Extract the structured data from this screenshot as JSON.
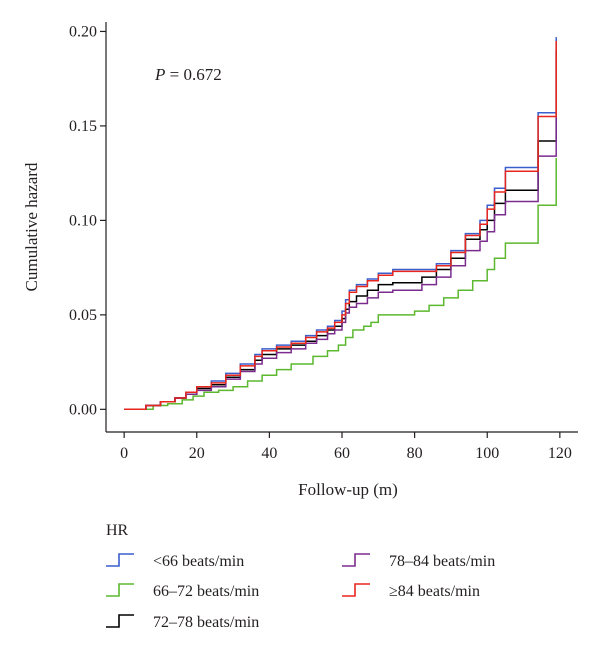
{
  "chart_data": {
    "type": "line",
    "step": true,
    "xlabel": "Follow-up (m)",
    "ylabel": "Cumulative hazard",
    "xlim": [
      -5,
      125
    ],
    "ylim": [
      -0.012,
      0.205
    ],
    "xticks": [
      0,
      20,
      40,
      60,
      80,
      100,
      120
    ],
    "yticks": [
      0.0,
      0.05,
      0.1,
      0.15,
      0.2
    ],
    "xtick_labels": [
      "0",
      "20",
      "40",
      "60",
      "80",
      "100",
      "120"
    ],
    "ytick_labels": [
      "0.00",
      "0.05",
      "0.10",
      "0.15",
      "0.20"
    ],
    "annotation": {
      "italic": "P",
      "rest": " = 0.672"
    },
    "legend_title": "HR",
    "grid": false,
    "series": [
      {
        "name": "<66 beats/min",
        "color": "#3a5fcd",
        "points": [
          [
            0,
            0
          ],
          [
            6,
            0.002
          ],
          [
            10,
            0.004
          ],
          [
            14,
            0.006
          ],
          [
            17,
            0.009
          ],
          [
            20,
            0.012
          ],
          [
            24,
            0.015
          ],
          [
            28,
            0.019
          ],
          [
            32,
            0.024
          ],
          [
            36,
            0.029
          ],
          [
            38,
            0.032
          ],
          [
            42,
            0.034
          ],
          [
            46,
            0.036
          ],
          [
            50,
            0.039
          ],
          [
            53,
            0.042
          ],
          [
            56,
            0.044
          ],
          [
            58,
            0.047
          ],
          [
            60,
            0.052
          ],
          [
            61,
            0.058
          ],
          [
            62,
            0.063
          ],
          [
            64,
            0.066
          ],
          [
            67,
            0.069
          ],
          [
            70,
            0.072
          ],
          [
            74,
            0.074
          ],
          [
            86,
            0.077
          ],
          [
            90,
            0.084
          ],
          [
            94,
            0.093
          ],
          [
            98,
            0.1
          ],
          [
            100,
            0.108
          ],
          [
            102,
            0.117
          ],
          [
            105,
            0.128
          ],
          [
            114,
            0.157
          ],
          [
            119,
            0.197
          ]
        ]
      },
      {
        "name": "66–72 beats/min",
        "color": "#5cb82e",
        "points": [
          [
            0,
            0
          ],
          [
            8,
            0.002
          ],
          [
            12,
            0.003
          ],
          [
            16,
            0.005
          ],
          [
            19,
            0.007
          ],
          [
            22,
            0.009
          ],
          [
            26,
            0.01
          ],
          [
            30,
            0.012
          ],
          [
            34,
            0.015
          ],
          [
            38,
            0.018
          ],
          [
            42,
            0.021
          ],
          [
            46,
            0.024
          ],
          [
            52,
            0.028
          ],
          [
            56,
            0.031
          ],
          [
            59,
            0.034
          ],
          [
            61,
            0.038
          ],
          [
            63,
            0.042
          ],
          [
            66,
            0.044
          ],
          [
            68,
            0.046
          ],
          [
            70,
            0.05
          ],
          [
            80,
            0.052
          ],
          [
            84,
            0.055
          ],
          [
            88,
            0.059
          ],
          [
            92,
            0.063
          ],
          [
            96,
            0.068
          ],
          [
            100,
            0.074
          ],
          [
            102,
            0.08
          ],
          [
            105,
            0.088
          ],
          [
            114,
            0.108
          ],
          [
            119,
            0.133
          ]
        ]
      },
      {
        "name": "72–78 beats/min",
        "color": "#000000",
        "points": [
          [
            0,
            0
          ],
          [
            6,
            0.002
          ],
          [
            10,
            0.004
          ],
          [
            14,
            0.006
          ],
          [
            17,
            0.008
          ],
          [
            20,
            0.011
          ],
          [
            24,
            0.013
          ],
          [
            28,
            0.017
          ],
          [
            32,
            0.021
          ],
          [
            36,
            0.026
          ],
          [
            38,
            0.029
          ],
          [
            42,
            0.032
          ],
          [
            46,
            0.034
          ],
          [
            50,
            0.036
          ],
          [
            53,
            0.039
          ],
          [
            56,
            0.042
          ],
          [
            58,
            0.044
          ],
          [
            60,
            0.048
          ],
          [
            61,
            0.053
          ],
          [
            62,
            0.057
          ],
          [
            64,
            0.06
          ],
          [
            67,
            0.063
          ],
          [
            70,
            0.066
          ],
          [
            74,
            0.067
          ],
          [
            82,
            0.07
          ],
          [
            86,
            0.074
          ],
          [
            90,
            0.08
          ],
          [
            94,
            0.09
          ],
          [
            98,
            0.095
          ],
          [
            100,
            0.1
          ],
          [
            102,
            0.109
          ],
          [
            105,
            0.116
          ],
          [
            114,
            0.142
          ],
          [
            119,
            0.19
          ]
        ]
      },
      {
        "name": "78–84 beats/min",
        "color": "#7b2d8e",
        "points": [
          [
            0,
            0
          ],
          [
            6,
            0.002
          ],
          [
            10,
            0.004
          ],
          [
            14,
            0.006
          ],
          [
            17,
            0.008
          ],
          [
            20,
            0.01
          ],
          [
            24,
            0.012
          ],
          [
            28,
            0.016
          ],
          [
            32,
            0.02
          ],
          [
            36,
            0.024
          ],
          [
            38,
            0.027
          ],
          [
            42,
            0.03
          ],
          [
            46,
            0.032
          ],
          [
            50,
            0.035
          ],
          [
            53,
            0.037
          ],
          [
            56,
            0.04
          ],
          [
            58,
            0.042
          ],
          [
            60,
            0.046
          ],
          [
            61,
            0.051
          ],
          [
            62,
            0.054
          ],
          [
            64,
            0.056
          ],
          [
            67,
            0.059
          ],
          [
            70,
            0.062
          ],
          [
            74,
            0.063
          ],
          [
            82,
            0.066
          ],
          [
            86,
            0.07
          ],
          [
            90,
            0.076
          ],
          [
            94,
            0.084
          ],
          [
            98,
            0.089
          ],
          [
            100,
            0.094
          ],
          [
            102,
            0.103
          ],
          [
            105,
            0.11
          ],
          [
            114,
            0.134
          ],
          [
            119,
            0.19
          ]
        ]
      },
      {
        "name": "≥84 beats/min",
        "color": "#e8261d",
        "points": [
          [
            0,
            0
          ],
          [
            6,
            0.002
          ],
          [
            10,
            0.004
          ],
          [
            14,
            0.006
          ],
          [
            17,
            0.009
          ],
          [
            20,
            0.012
          ],
          [
            24,
            0.014
          ],
          [
            28,
            0.018
          ],
          [
            32,
            0.023
          ],
          [
            36,
            0.028
          ],
          [
            38,
            0.031
          ],
          [
            42,
            0.033
          ],
          [
            46,
            0.035
          ],
          [
            50,
            0.038
          ],
          [
            53,
            0.041
          ],
          [
            56,
            0.043
          ],
          [
            58,
            0.046
          ],
          [
            60,
            0.05
          ],
          [
            61,
            0.056
          ],
          [
            62,
            0.062
          ],
          [
            64,
            0.065
          ],
          [
            67,
            0.068
          ],
          [
            70,
            0.071
          ],
          [
            74,
            0.073
          ],
          [
            86,
            0.076
          ],
          [
            90,
            0.083
          ],
          [
            94,
            0.092
          ],
          [
            98,
            0.098
          ],
          [
            100,
            0.106
          ],
          [
            102,
            0.115
          ],
          [
            105,
            0.126
          ],
          [
            114,
            0.155
          ],
          [
            119,
            0.195
          ]
        ]
      }
    ]
  }
}
